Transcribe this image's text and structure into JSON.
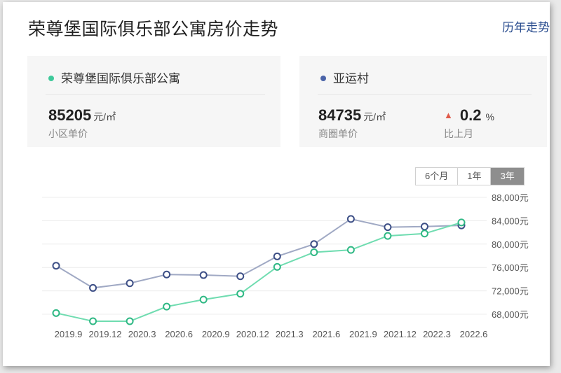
{
  "header": {
    "title": "荣尊堡国际俱乐部公寓房价走势",
    "history_link": "历年走势"
  },
  "cards": {
    "community": {
      "name": "荣尊堡国际俱乐部公寓",
      "dot_color": "#3ec99a",
      "price": "85205",
      "unit": "元/㎡",
      "label": "小区单价"
    },
    "district": {
      "name": "亚运村",
      "dot_color": "#4a63a8",
      "price": "84735",
      "unit": "元/㎡",
      "label": "商圈单价",
      "change": "0.2",
      "change_unit": "%",
      "change_label": "比上月",
      "change_direction": "up"
    }
  },
  "tabs": {
    "items": [
      "6个月",
      "1年",
      "3年"
    ],
    "active": "3年"
  },
  "chart_data": {
    "type": "line",
    "x": [
      "2019.9",
      "2019.12",
      "2020.3",
      "2020.6",
      "2020.9",
      "2020.12",
      "2021.3",
      "2021.6",
      "2021.9",
      "2021.12",
      "2022.3",
      "2022.6"
    ],
    "xtick_labels": [
      "2019.9",
      "2019.12",
      "2020.3",
      "2020.6",
      "2020.9",
      "2020.12",
      "2021.3",
      "2021.6",
      "2021.9",
      "2021.12",
      "2022.3",
      "2022.6"
    ],
    "series": [
      {
        "color": "#a0a9c4",
        "marker_color": "#3d4f86",
        "points": [
          {
            "x": "2019.8",
            "y": 76300
          },
          {
            "x": "2019.11",
            "y": 72500
          },
          {
            "x": "2020.2",
            "y": 73300
          },
          {
            "x": "2020.5",
            "y": 74800
          },
          {
            "x": "2020.8",
            "y": 74700
          },
          {
            "x": "2020.11",
            "y": 74500
          },
          {
            "x": "2021.2",
            "y": 77900
          },
          {
            "x": "2021.5",
            "y": 80000
          },
          {
            "x": "2021.8",
            "y": 84300
          },
          {
            "x": "2021.11",
            "y": 82900
          },
          {
            "x": "2022.2",
            "y": 83000
          },
          {
            "x": "2022.5",
            "y": 83200
          }
        ]
      },
      {
        "color": "#6fdcb0",
        "marker_color": "#2fb884",
        "points": [
          {
            "x": "2019.8",
            "y": 68200
          },
          {
            "x": "2019.11",
            "y": 66800
          },
          {
            "x": "2020.2",
            "y": 66800
          },
          {
            "x": "2020.5",
            "y": 69300
          },
          {
            "x": "2020.8",
            "y": 70500
          },
          {
            "x": "2020.11",
            "y": 71500
          },
          {
            "x": "2021.2",
            "y": 76100
          },
          {
            "x": "2021.5",
            "y": 78600
          },
          {
            "x": "2021.8",
            "y": 79000
          },
          {
            "x": "2021.11",
            "y": 81400
          },
          {
            "x": "2022.2",
            "y": 81800
          },
          {
            "x": "2022.5",
            "y": 83700
          }
        ]
      }
    ],
    "ytick_labels": [
      "68,000元",
      "72,000元",
      "76,000元",
      "80,000元",
      "84,000元",
      "88,000元"
    ],
    "yticks": [
      68000,
      72000,
      76000,
      80000,
      84000,
      88000
    ],
    "ylim": [
      68000,
      88000
    ],
    "grid": true,
    "legend": "none"
  }
}
